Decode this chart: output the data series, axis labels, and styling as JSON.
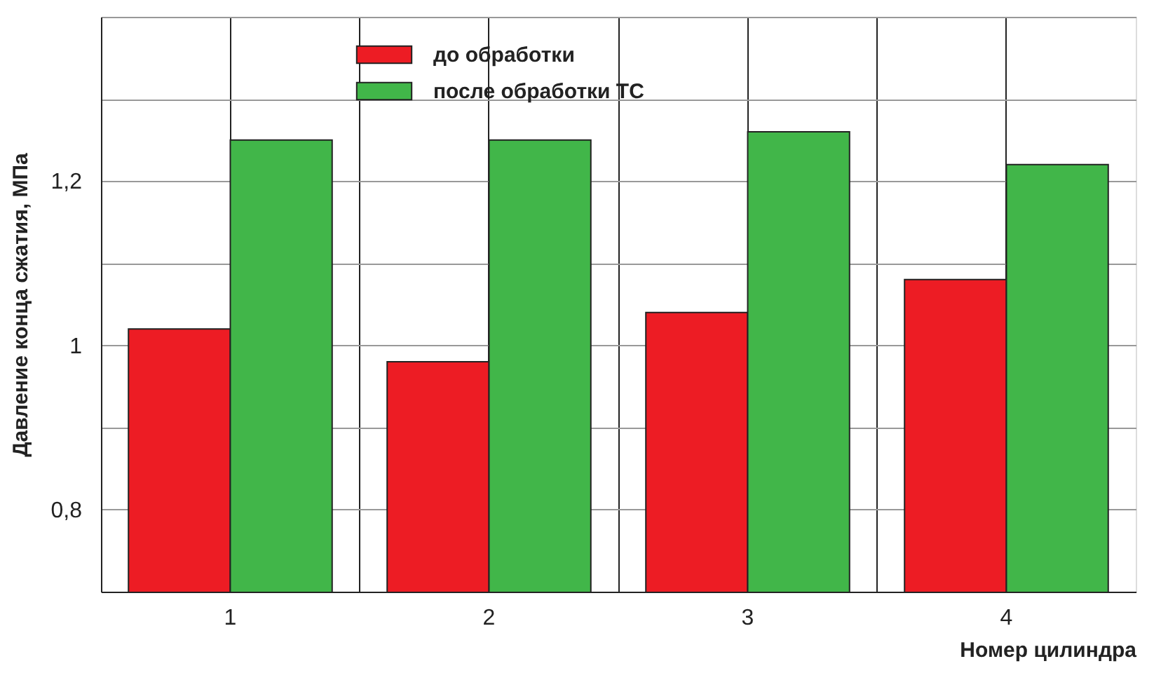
{
  "chart_data": {
    "type": "bar",
    "xlabel": "Номер цилиндра",
    "ylabel": "Давление конца сжатия, МПа",
    "categories": [
      "1",
      "2",
      "3",
      "4"
    ],
    "series": [
      {
        "name": "до обработки",
        "color": "#ed1c24",
        "values": [
          1.02,
          0.98,
          1.04,
          1.08
        ]
      },
      {
        "name": "после обработки ТС",
        "color": "#41b649",
        "values": [
          1.25,
          1.25,
          1.26,
          1.22
        ]
      }
    ],
    "ylim": [
      0.7,
      1.4
    ],
    "yticks": [
      {
        "value": 0.7,
        "label": null
      },
      {
        "value": 0.8,
        "label": "0,8"
      },
      {
        "value": 0.9,
        "label": null
      },
      {
        "value": 1,
        "label": "1"
      },
      {
        "value": 1.1,
        "label": null
      },
      {
        "value": 1.2,
        "label": "1,2"
      },
      {
        "value": 1.3,
        "label": null
      },
      {
        "value": 1.4,
        "label": null
      }
    ],
    "grid": true,
    "legend": "top"
  }
}
